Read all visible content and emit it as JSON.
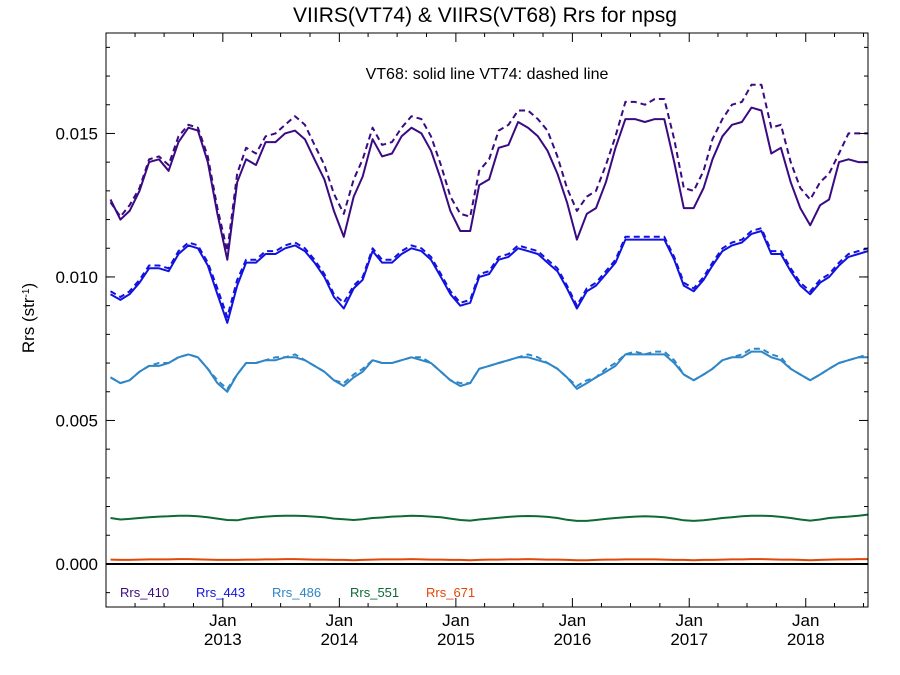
{
  "chart_data": {
    "type": "line",
    "title": "VIIRS(VT74) & VIIRS(VT68)  Rrs for npsg",
    "annotation": "VT68: solid line   VT74: dashed line",
    "xlabel": "",
    "ylabel": "Rrs (str",
    "ylabel_sup": "-1",
    "ylabel_close": ")",
    "xlim": [
      "2012-01-01",
      "2018-07-15"
    ],
    "ylim": [
      -0.0015,
      0.0185
    ],
    "x_ticks": [
      {
        "month": "Jan",
        "year": "2013",
        "date": "2013-01-01"
      },
      {
        "month": "Jan",
        "year": "2014",
        "date": "2014-01-01"
      },
      {
        "month": "Jan",
        "year": "2015",
        "date": "2015-01-01"
      },
      {
        "month": "Jan",
        "year": "2016",
        "date": "2016-01-01"
      },
      {
        "month": "Jan",
        "year": "2017",
        "date": "2017-01-01"
      },
      {
        "month": "Jan",
        "year": "2018",
        "date": "2018-01-01"
      }
    ],
    "y_ticks": [
      {
        "value": 0.0,
        "label": "0.000"
      },
      {
        "value": 0.005,
        "label": "0.005"
      },
      {
        "value": 0.01,
        "label": "0.010"
      },
      {
        "value": 0.015,
        "label": "0.015"
      }
    ],
    "zero_line": true,
    "grid": false,
    "x": [
      "2012-01-15",
      "2012-02-15",
      "2012-03-15",
      "2012-04-15",
      "2012-05-15",
      "2012-06-15",
      "2012-07-15",
      "2012-08-15",
      "2012-09-15",
      "2012-10-15",
      "2012-11-15",
      "2012-12-15",
      "2013-01-15",
      "2013-02-15",
      "2013-03-15",
      "2013-04-15",
      "2013-05-15",
      "2013-06-15",
      "2013-07-15",
      "2013-08-15",
      "2013-09-15",
      "2013-10-15",
      "2013-11-15",
      "2013-12-15",
      "2014-01-15",
      "2014-02-15",
      "2014-03-15",
      "2014-04-15",
      "2014-05-15",
      "2014-06-15",
      "2014-07-15",
      "2014-08-15",
      "2014-09-15",
      "2014-10-15",
      "2014-11-15",
      "2014-12-15",
      "2015-01-15",
      "2015-02-15",
      "2015-03-15",
      "2015-04-15",
      "2015-05-15",
      "2015-06-15",
      "2015-07-15",
      "2015-08-15",
      "2015-09-15",
      "2015-10-15",
      "2015-11-15",
      "2015-12-15",
      "2016-01-15",
      "2016-02-15",
      "2016-03-15",
      "2016-04-15",
      "2016-05-15",
      "2016-06-15",
      "2016-07-15",
      "2016-08-15",
      "2016-09-15",
      "2016-10-15",
      "2016-11-15",
      "2016-12-15",
      "2017-01-15",
      "2017-02-15",
      "2017-03-15",
      "2017-04-15",
      "2017-05-15",
      "2017-06-15",
      "2017-07-15",
      "2017-08-15",
      "2017-09-15",
      "2017-10-15",
      "2017-11-15",
      "2017-12-15",
      "2018-01-15",
      "2018-02-15",
      "2018-03-15",
      "2018-04-15",
      "2018-05-15",
      "2018-06-15",
      "2018-07-15"
    ],
    "series": [
      {
        "name": "Rrs_410",
        "color": "#3a0a82",
        "style": "solid",
        "values": [
          0.0127,
          0.012,
          0.0123,
          0.013,
          0.014,
          0.0141,
          0.0137,
          0.0147,
          0.0152,
          0.0151,
          0.014,
          0.0122,
          0.0106,
          0.0133,
          0.0141,
          0.0139,
          0.0147,
          0.0147,
          0.015,
          0.0151,
          0.0148,
          0.0141,
          0.0134,
          0.0123,
          0.0114,
          0.0128,
          0.0135,
          0.0148,
          0.0142,
          0.0143,
          0.0149,
          0.0152,
          0.015,
          0.0144,
          0.0134,
          0.0123,
          0.0116,
          0.0116,
          0.0132,
          0.0134,
          0.0145,
          0.0146,
          0.0154,
          0.0152,
          0.0149,
          0.0144,
          0.0136,
          0.0126,
          0.0113,
          0.0122,
          0.0124,
          0.0133,
          0.0145,
          0.0155,
          0.0155,
          0.0154,
          0.0155,
          0.0155,
          0.014,
          0.0124,
          0.0124,
          0.0131,
          0.0141,
          0.0149,
          0.0153,
          0.0154,
          0.0159,
          0.0158,
          0.0143,
          0.0145,
          0.0133,
          0.0124,
          0.0118,
          0.0125,
          0.0127,
          0.014,
          0.0141,
          0.014,
          0.014
        ]
      },
      {
        "name": "Rrs_410 (VT74)",
        "color": "#3a0a82",
        "style": "dashed",
        "values": [
          0.0126,
          0.0121,
          0.0125,
          0.0131,
          0.0141,
          0.0142,
          0.0139,
          0.0149,
          0.0153,
          0.0152,
          0.0142,
          0.0124,
          0.0109,
          0.0136,
          0.0145,
          0.0143,
          0.0149,
          0.015,
          0.0153,
          0.0156,
          0.0153,
          0.0146,
          0.0139,
          0.0129,
          0.0122,
          0.0134,
          0.0141,
          0.0152,
          0.0146,
          0.0147,
          0.0152,
          0.0156,
          0.0155,
          0.0149,
          0.0139,
          0.0128,
          0.0122,
          0.0121,
          0.0137,
          0.0141,
          0.0151,
          0.0153,
          0.0158,
          0.0158,
          0.0155,
          0.0151,
          0.0142,
          0.0131,
          0.0123,
          0.0128,
          0.013,
          0.0139,
          0.0149,
          0.0161,
          0.0161,
          0.016,
          0.0162,
          0.0162,
          0.0148,
          0.0131,
          0.013,
          0.0137,
          0.0148,
          0.0155,
          0.016,
          0.0161,
          0.0167,
          0.0167,
          0.0152,
          0.0153,
          0.014,
          0.0131,
          0.0127,
          0.0133,
          0.0136,
          0.0143,
          0.015,
          0.015,
          0.015
        ]
      },
      {
        "name": "Rrs_443",
        "color": "#1212e0",
        "style": "solid",
        "values": [
          0.0094,
          0.0092,
          0.0094,
          0.0098,
          0.0103,
          0.0103,
          0.0102,
          0.0108,
          0.0111,
          0.011,
          0.0104,
          0.0094,
          0.0084,
          0.0097,
          0.0105,
          0.0105,
          0.0108,
          0.0108,
          0.011,
          0.0111,
          0.0109,
          0.0105,
          0.01,
          0.0093,
          0.0089,
          0.0096,
          0.0099,
          0.0109,
          0.0105,
          0.0105,
          0.0108,
          0.011,
          0.0109,
          0.0106,
          0.01,
          0.0094,
          0.009,
          0.0091,
          0.01,
          0.0101,
          0.0106,
          0.0107,
          0.011,
          0.0109,
          0.0108,
          0.0105,
          0.0102,
          0.0096,
          0.0089,
          0.0095,
          0.0097,
          0.0101,
          0.0105,
          0.0113,
          0.0113,
          0.0113,
          0.0113,
          0.0113,
          0.0106,
          0.0097,
          0.0095,
          0.0099,
          0.0104,
          0.0109,
          0.0111,
          0.0112,
          0.0115,
          0.0116,
          0.0108,
          0.0108,
          0.0102,
          0.0097,
          0.0094,
          0.0098,
          0.01,
          0.0104,
          0.0107,
          0.0108,
          0.0109
        ]
      },
      {
        "name": "Rrs_443 (VT74)",
        "color": "#1212e0",
        "style": "dashed",
        "values": [
          0.0095,
          0.0093,
          0.0095,
          0.0099,
          0.0104,
          0.0104,
          0.0103,
          0.0109,
          0.0112,
          0.0111,
          0.0105,
          0.0096,
          0.0086,
          0.0099,
          0.0106,
          0.0106,
          0.0109,
          0.0109,
          0.0111,
          0.0112,
          0.011,
          0.0106,
          0.0101,
          0.0094,
          0.0091,
          0.0097,
          0.01,
          0.011,
          0.0106,
          0.0106,
          0.0109,
          0.0111,
          0.011,
          0.0107,
          0.0101,
          0.0095,
          0.0091,
          0.0092,
          0.0101,
          0.0102,
          0.0107,
          0.0108,
          0.0111,
          0.011,
          0.0109,
          0.0106,
          0.0103,
          0.0097,
          0.009,
          0.0096,
          0.0098,
          0.0102,
          0.0106,
          0.0114,
          0.0114,
          0.0114,
          0.0114,
          0.0114,
          0.0107,
          0.0098,
          0.0096,
          0.01,
          0.0105,
          0.011,
          0.0112,
          0.0113,
          0.0116,
          0.0117,
          0.0109,
          0.0109,
          0.0103,
          0.0098,
          0.0095,
          0.0099,
          0.0101,
          0.0105,
          0.0108,
          0.0109,
          0.011
        ]
      },
      {
        "name": "Rrs_486",
        "color": "#2e86c8",
        "style": "solid",
        "values": [
          0.0065,
          0.0063,
          0.0064,
          0.0067,
          0.0069,
          0.0069,
          0.007,
          0.0072,
          0.0073,
          0.0072,
          0.0068,
          0.0063,
          0.006,
          0.0066,
          0.007,
          0.007,
          0.0071,
          0.0071,
          0.0072,
          0.0072,
          0.0071,
          0.0069,
          0.0067,
          0.0064,
          0.0062,
          0.0065,
          0.0067,
          0.0071,
          0.007,
          0.007,
          0.0071,
          0.0072,
          0.0071,
          0.007,
          0.0067,
          0.0064,
          0.0062,
          0.0063,
          0.0068,
          0.0069,
          0.007,
          0.0071,
          0.0072,
          0.0072,
          0.0071,
          0.007,
          0.0068,
          0.0065,
          0.0061,
          0.0063,
          0.0065,
          0.0067,
          0.0069,
          0.0073,
          0.0073,
          0.0073,
          0.0073,
          0.0073,
          0.007,
          0.0066,
          0.0064,
          0.0066,
          0.0068,
          0.0071,
          0.0072,
          0.0072,
          0.0074,
          0.0074,
          0.0072,
          0.0071,
          0.0068,
          0.0066,
          0.0064,
          0.0066,
          0.0068,
          0.007,
          0.0071,
          0.0072,
          0.0072
        ]
      },
      {
        "name": "Rrs_486 (VT74)",
        "color": "#2e86c8",
        "style": "dashed",
        "values": [
          0.0065,
          0.0063,
          0.0064,
          0.0067,
          0.0069,
          0.007,
          0.007,
          0.0072,
          0.0073,
          0.0072,
          0.0068,
          0.0064,
          0.0061,
          0.0066,
          0.007,
          0.007,
          0.0071,
          0.0072,
          0.0072,
          0.0073,
          0.0071,
          0.0069,
          0.0067,
          0.0064,
          0.0063,
          0.0066,
          0.0068,
          0.0071,
          0.007,
          0.007,
          0.0071,
          0.0072,
          0.0072,
          0.007,
          0.0067,
          0.0064,
          0.0063,
          0.0063,
          0.0068,
          0.0069,
          0.007,
          0.0071,
          0.0072,
          0.0073,
          0.0072,
          0.007,
          0.0068,
          0.0065,
          0.0062,
          0.0064,
          0.0065,
          0.0068,
          0.007,
          0.0073,
          0.0074,
          0.0073,
          0.0074,
          0.0074,
          0.0071,
          0.0066,
          0.0064,
          0.0066,
          0.0068,
          0.0071,
          0.0072,
          0.0073,
          0.0075,
          0.0075,
          0.0073,
          0.0072,
          0.0068,
          0.0066,
          0.0064,
          0.0066,
          0.0068,
          0.007,
          0.0071,
          0.0072,
          0.0073
        ]
      },
      {
        "name": "Rrs_551",
        "color": "#0e6a35",
        "style": "solid",
        "values": [
          0.0016,
          0.00155,
          0.00157,
          0.0016,
          0.00163,
          0.00165,
          0.00166,
          0.00168,
          0.00168,
          0.00166,
          0.00163,
          0.00158,
          0.00153,
          0.00152,
          0.00158,
          0.00162,
          0.00165,
          0.00167,
          0.00168,
          0.00168,
          0.00167,
          0.00165,
          0.00163,
          0.00158,
          0.00156,
          0.00153,
          0.00156,
          0.0016,
          0.00162,
          0.00165,
          0.00166,
          0.00168,
          0.00167,
          0.00165,
          0.00163,
          0.00158,
          0.00153,
          0.00151,
          0.00155,
          0.00158,
          0.00161,
          0.00164,
          0.00166,
          0.00167,
          0.00166,
          0.00164,
          0.0016,
          0.00154,
          0.0015,
          0.0015,
          0.00153,
          0.00157,
          0.0016,
          0.00163,
          0.00165,
          0.00166,
          0.00165,
          0.00163,
          0.00158,
          0.00152,
          0.0015,
          0.00152,
          0.00156,
          0.0016,
          0.00163,
          0.00166,
          0.00168,
          0.00168,
          0.00167,
          0.00164,
          0.0016,
          0.00155,
          0.00151,
          0.00155,
          0.0016,
          0.00163,
          0.00165,
          0.00168,
          0.00172
        ]
      },
      {
        "name": "Rrs_671",
        "color": "#e04808",
        "style": "solid",
        "values": [
          0.00015,
          0.00014,
          0.00014,
          0.00015,
          0.00016,
          0.00016,
          0.00016,
          0.00017,
          0.00017,
          0.00016,
          0.00015,
          0.00014,
          0.00014,
          0.00014,
          0.00015,
          0.00015,
          0.00016,
          0.00016,
          0.00017,
          0.00017,
          0.00016,
          0.00015,
          0.00015,
          0.00014,
          0.00014,
          0.00013,
          0.00014,
          0.00015,
          0.00016,
          0.00016,
          0.00016,
          0.00017,
          0.00016,
          0.00015,
          0.00015,
          0.00014,
          0.00014,
          0.00013,
          0.00014,
          0.00015,
          0.00015,
          0.00016,
          0.00016,
          0.00017,
          0.00016,
          0.00015,
          0.00015,
          0.00014,
          0.00013,
          0.00013,
          0.00014,
          0.00015,
          0.00015,
          0.00016,
          0.00016,
          0.00016,
          0.00016,
          0.00015,
          0.00014,
          0.00014,
          0.00013,
          0.00014,
          0.00014,
          0.00015,
          0.00016,
          0.00016,
          0.00017,
          0.00017,
          0.00016,
          0.00015,
          0.00015,
          0.00014,
          0.00013,
          0.00014,
          0.00015,
          0.00016,
          0.00016,
          0.00017,
          0.00017
        ]
      }
    ],
    "legend": [
      {
        "label": "Rrs_410",
        "color": "#3a0a82"
      },
      {
        "label": "Rrs_443",
        "color": "#1212e0"
      },
      {
        "label": "Rrs_486",
        "color": "#2e86c8"
      },
      {
        "label": "Rrs_551",
        "color": "#0e6a35"
      },
      {
        "label": "Rrs_671",
        "color": "#e04808"
      }
    ],
    "legend_placement": "bottom-left inside"
  }
}
